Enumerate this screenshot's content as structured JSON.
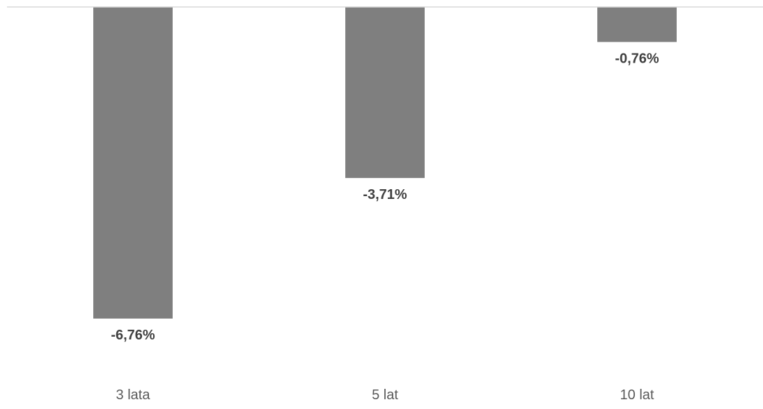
{
  "chart_data": {
    "type": "bar",
    "categories": [
      "3 lata",
      "5 lat",
      "10 lat"
    ],
    "values": [
      -6.76,
      -3.71,
      -0.76
    ],
    "data_labels": [
      "-6,76%",
      "-3,71%",
      "-0,76%"
    ],
    "title": "",
    "xlabel": "",
    "ylabel": "",
    "ylim": [
      -6.76,
      0
    ],
    "grid": false,
    "legend": "none",
    "bar_color": "#7f7f7f",
    "axis_color": "#d9d9d9",
    "label_color": "#404040",
    "category_color": "#595959"
  }
}
